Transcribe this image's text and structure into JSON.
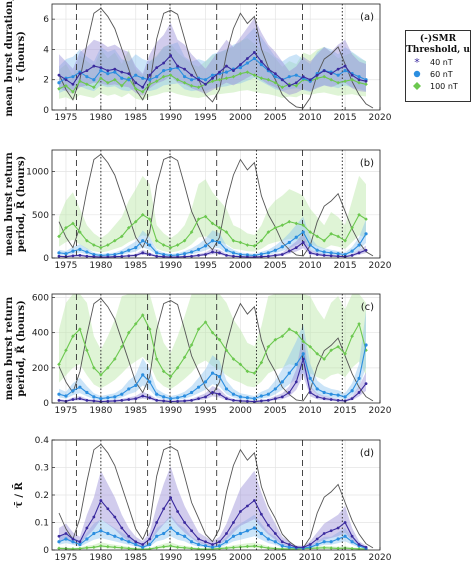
{
  "legend": {
    "title_line1": "(-)SMR",
    "title_line2": "Threshold, u",
    "entries": [
      {
        "label": "40 nT",
        "color": "#3a2a9e",
        "marker": "star-icon"
      },
      {
        "label": "60 nT",
        "color": "#2b8ee0",
        "marker": "circle-icon"
      },
      {
        "label": "100 nT",
        "color": "#6cc84f",
        "marker": "diamond-icon"
      }
    ]
  },
  "colors": {
    "sunspot": "#555555",
    "s40": "#3a2a9e",
    "s40_band": "#9a8fd6",
    "s60": "#2b8ee0",
    "s60_band": "#8cc4f0",
    "s100": "#6cc84f",
    "s100_band": "#b7e6a3"
  },
  "chart_data": [
    {
      "panel": "(a)",
      "type": "line",
      "ylabel_line1": "mean burst duration,",
      "ylabel_line2": "τ̄ (hours)",
      "xlim": [
        1973,
        2020
      ],
      "ylim": [
        0,
        7
      ],
      "xticks": [
        "1975",
        "1980",
        "1985",
        "1990",
        "1995",
        "2000",
        "2005",
        "2010",
        "2015",
        "2020"
      ],
      "yticks": [
        "0",
        "2",
        "4",
        "6"
      ],
      "x": [
        1974,
        1975,
        1976,
        1977,
        1978,
        1979,
        1980,
        1981,
        1982,
        1983,
        1984,
        1985,
        1986,
        1987,
        1988,
        1989,
        1990,
        1991,
        1992,
        1993,
        1994,
        1995,
        1996,
        1997,
        1998,
        1999,
        2000,
        2001,
        2002,
        2003,
        2004,
        2005,
        2006,
        2007,
        2008,
        2009,
        2010,
        2011,
        2012,
        2013,
        2014,
        2015,
        2016,
        2017,
        2018
      ],
      "series": [
        {
          "name": "40 nT",
          "values": [
            2.3,
            2.0,
            1.7,
            2.4,
            2.6,
            2.9,
            2.8,
            2.6,
            2.7,
            2.5,
            2.4,
            1.8,
            1.5,
            2.3,
            2.8,
            3.1,
            3.6,
            2.9,
            2.7,
            2.3,
            2.0,
            1.7,
            2.1,
            2.5,
            2.9,
            2.6,
            3.0,
            3.4,
            3.8,
            3.2,
            2.7,
            2.4,
            2.0,
            1.6,
            1.8,
            2.2,
            2.0,
            2.3,
            2.6,
            2.4,
            2.7,
            2.9,
            2.3,
            2.0,
            1.9
          ]
        },
        {
          "name": "60 nT",
          "values": [
            1.8,
            2.1,
            2.2,
            2.5,
            2.2,
            2.0,
            2.6,
            2.4,
            2.5,
            2.1,
            2.0,
            2.3,
            2.1,
            2.0,
            2.2,
            2.6,
            2.7,
            2.8,
            2.2,
            2.0,
            2.1,
            2.0,
            2.3,
            2.4,
            2.5,
            2.7,
            2.8,
            3.1,
            3.4,
            3.0,
            2.6,
            2.2,
            2.0,
            2.2,
            2.3,
            2.1,
            1.9,
            2.4,
            2.6,
            2.5,
            2.3,
            2.6,
            2.4,
            2.2,
            2.0
          ]
        },
        {
          "name": "100 nT",
          "values": [
            1.4,
            1.6,
            1.2,
            1.9,
            1.7,
            1.5,
            2.1,
            1.8,
            2.0,
            1.6,
            2.1,
            1.4,
            1.2,
            1.7,
            1.9,
            2.2,
            2.3,
            2.0,
            1.8,
            1.6,
            1.5,
            1.7,
            1.9,
            2.0,
            2.1,
            2.2,
            2.4,
            2.5,
            2.3,
            2.1,
            2.0,
            1.8,
            1.5,
            1.7,
            1.6,
            2.0,
            1.9,
            2.1,
            2.2,
            2.0,
            1.8,
            1.9,
            2.0,
            1.8,
            1.7
          ]
        }
      ]
    },
    {
      "panel": "(b)",
      "type": "line",
      "ylabel_line1": "mean burst return",
      "ylabel_line2": "period, R̄ (hours)",
      "xlim": [
        1973,
        2020
      ],
      "ylim": [
        0,
        1250
      ],
      "xticks": [
        "1975",
        "1980",
        "1985",
        "1990",
        "1995",
        "2000",
        "2005",
        "2010",
        "2015",
        "2020"
      ],
      "yticks": [
        "0",
        "500",
        "1000"
      ],
      "x": [
        1974,
        1975,
        1976,
        1977,
        1978,
        1979,
        1980,
        1981,
        1982,
        1983,
        1984,
        1985,
        1986,
        1987,
        1988,
        1989,
        1990,
        1991,
        1992,
        1993,
        1994,
        1995,
        1996,
        1997,
        1998,
        1999,
        2000,
        2001,
        2002,
        2003,
        2004,
        2005,
        2006,
        2007,
        2008,
        2009,
        2010,
        2011,
        2012,
        2013,
        2014,
        2015,
        2016,
        2017,
        2018
      ],
      "series": [
        {
          "name": "40 nT",
          "values": [
            20,
            15,
            25,
            30,
            20,
            15,
            10,
            12,
            15,
            18,
            25,
            30,
            60,
            40,
            20,
            15,
            10,
            12,
            15,
            20,
            30,
            40,
            70,
            60,
            30,
            20,
            15,
            12,
            10,
            15,
            20,
            30,
            40,
            80,
            120,
            180,
            60,
            40,
            30,
            25,
            20,
            15,
            30,
            60,
            90
          ]
        },
        {
          "name": "60 nT",
          "values": [
            60,
            50,
            80,
            100,
            70,
            40,
            30,
            35,
            40,
            60,
            90,
            120,
            200,
            150,
            60,
            40,
            30,
            35,
            50,
            70,
            100,
            140,
            200,
            180,
            90,
            60,
            40,
            35,
            30,
            45,
            60,
            90,
            130,
            180,
            240,
            300,
            150,
            90,
            70,
            60,
            50,
            40,
            80,
            150,
            280
          ]
        },
        {
          "name": "100 nT",
          "values": [
            250,
            350,
            400,
            300,
            200,
            150,
            120,
            150,
            200,
            250,
            350,
            420,
            500,
            450,
            200,
            150,
            120,
            150,
            200,
            300,
            450,
            480,
            400,
            350,
            300,
            200,
            180,
            150,
            140,
            200,
            300,
            350,
            380,
            420,
            400,
            380,
            300,
            250,
            200,
            280,
            250,
            200,
            350,
            500,
            450
          ]
        }
      ]
    },
    {
      "panel": "(c)",
      "type": "line",
      "ylabel_line1": "mean burst return",
      "ylabel_line2": "period, R̃ (hours)",
      "xlim": [
        1973,
        2020
      ],
      "ylim": [
        0,
        620
      ],
      "xticks": [
        "1975",
        "1980",
        "1985",
        "1990",
        "1995",
        "2000",
        "2005",
        "2010",
        "2015",
        "2020"
      ],
      "yticks": [
        "0",
        "200",
        "400",
        "600"
      ],
      "x": [
        1974,
        1975,
        1976,
        1977,
        1978,
        1979,
        1980,
        1981,
        1982,
        1983,
        1984,
        1985,
        1986,
        1987,
        1988,
        1989,
        1990,
        1991,
        1992,
        1993,
        1994,
        1995,
        1996,
        1997,
        1998,
        1999,
        2000,
        2001,
        2002,
        2003,
        2004,
        2005,
        2006,
        2007,
        2008,
        2009,
        2010,
        2011,
        2012,
        2013,
        2014,
        2015,
        2016,
        2017,
        2018
      ],
      "series": [
        {
          "name": "40 nT",
          "values": [
            15,
            10,
            20,
            25,
            15,
            12,
            8,
            10,
            12,
            15,
            20,
            25,
            40,
            30,
            15,
            12,
            8,
            10,
            12,
            15,
            25,
            35,
            60,
            50,
            25,
            15,
            12,
            10,
            8,
            12,
            15,
            25,
            35,
            60,
            120,
            250,
            60,
            35,
            25,
            20,
            15,
            12,
            25,
            60,
            110
          ]
        },
        {
          "name": "60 nT",
          "values": [
            50,
            40,
            70,
            90,
            60,
            35,
            25,
            30,
            35,
            50,
            80,
            100,
            160,
            120,
            50,
            35,
            25,
            30,
            40,
            60,
            90,
            120,
            170,
            150,
            80,
            50,
            35,
            30,
            25,
            40,
            50,
            80,
            120,
            170,
            220,
            280,
            140,
            80,
            60,
            50,
            45,
            35,
            70,
            140,
            330
          ]
        },
        {
          "name": "100 nT",
          "values": [
            220,
            300,
            380,
            420,
            300,
            200,
            160,
            200,
            250,
            320,
            400,
            450,
            500,
            420,
            250,
            180,
            150,
            200,
            260,
            330,
            420,
            460,
            400,
            360,
            300,
            250,
            220,
            180,
            170,
            230,
            320,
            360,
            380,
            420,
            400,
            350,
            320,
            280,
            250,
            300,
            320,
            280,
            380,
            450,
            300
          ]
        }
      ]
    },
    {
      "panel": "(d)",
      "type": "line",
      "ylabel_line1": "τ̄ / R̄",
      "ylabel_line2": "",
      "xlim": [
        1973,
        2020
      ],
      "ylim": [
        0,
        0.4
      ],
      "xticks": [
        "1975",
        "1980",
        "1985",
        "1990",
        "1995",
        "2000",
        "2005",
        "2010",
        "2015",
        "2020"
      ],
      "yticks": [
        "0",
        "0.1",
        "0.2",
        "0.3",
        "0.4"
      ],
      "x": [
        1974,
        1975,
        1976,
        1977,
        1978,
        1979,
        1980,
        1981,
        1982,
        1983,
        1984,
        1985,
        1986,
        1987,
        1988,
        1989,
        1990,
        1991,
        1992,
        1993,
        1994,
        1995,
        1996,
        1997,
        1998,
        1999,
        2000,
        2001,
        2002,
        2003,
        2004,
        2005,
        2006,
        2007,
        2008,
        2009,
        2010,
        2011,
        2012,
        2013,
        2014,
        2015,
        2016,
        2017,
        2018
      ],
      "series": [
        {
          "name": "40 nT",
          "values": [
            0.05,
            0.06,
            0.04,
            0.03,
            0.08,
            0.12,
            0.18,
            0.15,
            0.12,
            0.08,
            0.05,
            0.03,
            0.02,
            0.04,
            0.1,
            0.15,
            0.19,
            0.14,
            0.1,
            0.07,
            0.04,
            0.03,
            0.02,
            0.03,
            0.06,
            0.1,
            0.14,
            0.16,
            0.18,
            0.13,
            0.09,
            0.06,
            0.03,
            0.02,
            0.01,
            0.01,
            0.02,
            0.04,
            0.06,
            0.07,
            0.08,
            0.1,
            0.05,
            0.02,
            0.01
          ]
        },
        {
          "name": "60 nT",
          "values": [
            0.03,
            0.04,
            0.03,
            0.02,
            0.04,
            0.06,
            0.07,
            0.06,
            0.05,
            0.04,
            0.03,
            0.02,
            0.01,
            0.02,
            0.05,
            0.06,
            0.08,
            0.06,
            0.05,
            0.03,
            0.02,
            0.015,
            0.01,
            0.015,
            0.03,
            0.05,
            0.06,
            0.07,
            0.08,
            0.06,
            0.04,
            0.03,
            0.015,
            0.01,
            0.008,
            0.007,
            0.01,
            0.02,
            0.03,
            0.03,
            0.04,
            0.05,
            0.03,
            0.015,
            0.006
          ]
        },
        {
          "name": "100 nT",
          "values": [
            0.006,
            0.005,
            0.004,
            0.005,
            0.008,
            0.01,
            0.015,
            0.012,
            0.01,
            0.008,
            0.006,
            0.004,
            0.003,
            0.004,
            0.008,
            0.012,
            0.015,
            0.01,
            0.008,
            0.006,
            0.004,
            0.003,
            0.004,
            0.005,
            0.007,
            0.009,
            0.011,
            0.013,
            0.014,
            0.011,
            0.007,
            0.005,
            0.004,
            0.004,
            0.004,
            0.005,
            0.006,
            0.007,
            0.008,
            0.007,
            0.006,
            0.007,
            0.005,
            0.004,
            0.004
          ]
        }
      ]
    }
  ],
  "sunspot": {
    "x": [
      1974,
      1975,
      1976,
      1977,
      1978,
      1979,
      1980,
      1981,
      1982,
      1983,
      1984,
      1985,
      1986,
      1987,
      1988,
      1989,
      1990,
      1991,
      1992,
      1993,
      1994,
      1995,
      1996,
      1997,
      1998,
      1999,
      2000,
      2001,
      2002,
      2003,
      2004,
      2005,
      2006,
      2007,
      2008,
      2009,
      2010,
      2011,
      2012,
      2013,
      2014,
      2015,
      2016,
      2017,
      2018,
      2019
    ],
    "phase": [
      0.35,
      0.2,
      0.1,
      0.3,
      0.65,
      0.95,
      1.0,
      0.92,
      0.8,
      0.6,
      0.4,
      0.2,
      0.1,
      0.25,
      0.7,
      0.95,
      0.98,
      0.94,
      0.7,
      0.45,
      0.3,
      0.15,
      0.08,
      0.2,
      0.55,
      0.8,
      0.95,
      0.85,
      0.92,
      0.6,
      0.42,
      0.3,
      0.15,
      0.08,
      0.03,
      0.02,
      0.12,
      0.35,
      0.5,
      0.55,
      0.62,
      0.45,
      0.28,
      0.15,
      0.06,
      0.02
    ]
  },
  "markers": {
    "dashed_years": [
      1976.5,
      1986.7,
      1996.6,
      2008.9
    ],
    "dotted_years": [
      1980.0,
      1989.9,
      2002.3,
      2014.6
    ]
  }
}
